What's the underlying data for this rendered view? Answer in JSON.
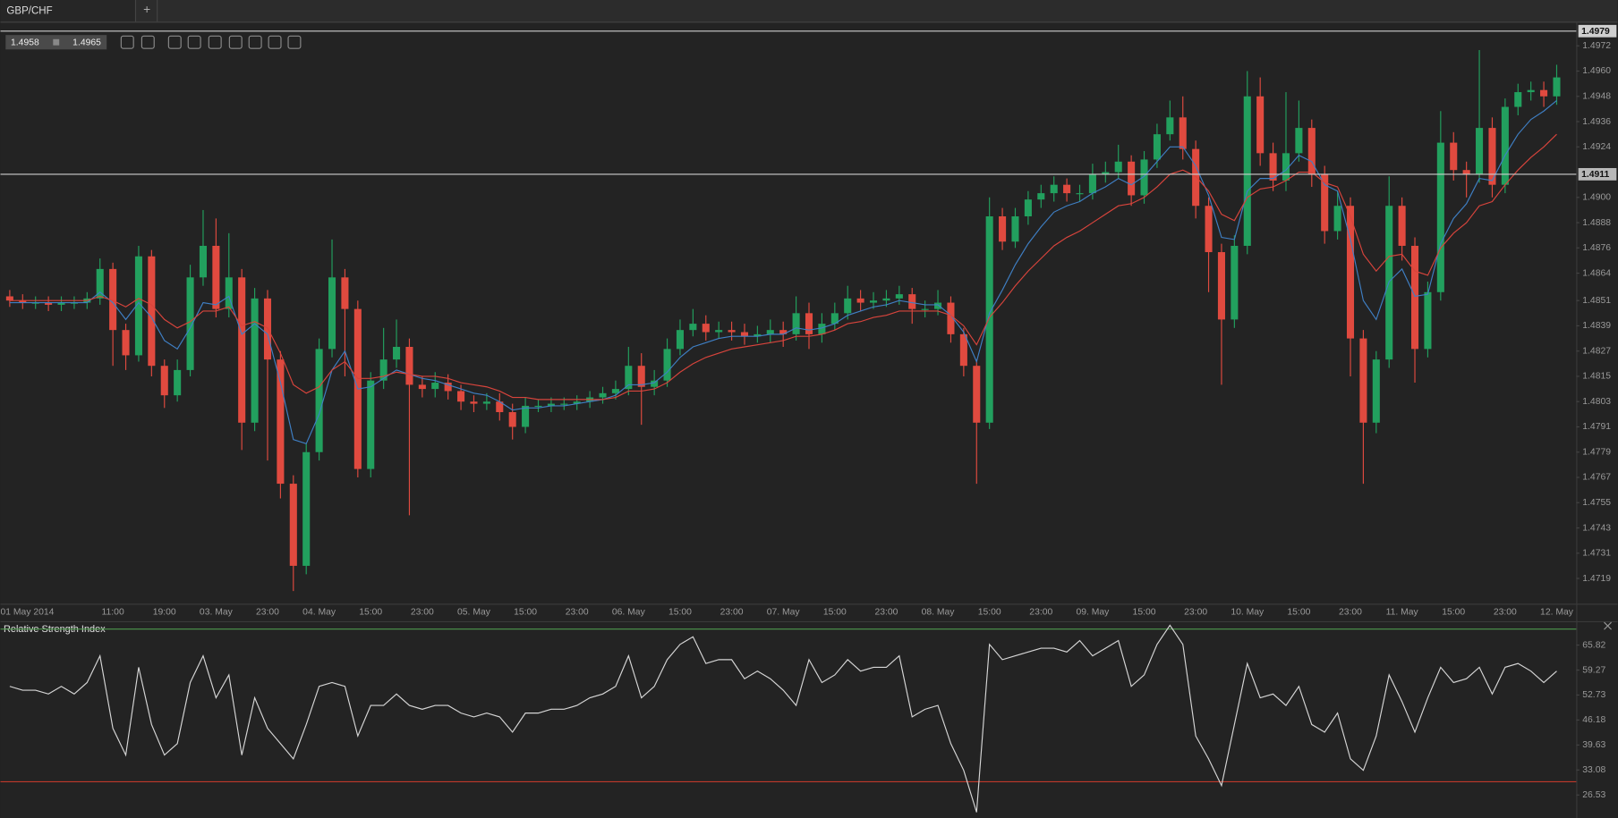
{
  "tab": {
    "title": "GBP/CHF",
    "add": "+"
  },
  "quote": {
    "bid": "1.4958",
    "ask": "1.4965"
  },
  "chart_data": [
    {
      "type": "candlestick",
      "up_color": "#22a05e",
      "down_color": "#e04a3f",
      "categories": [
        "01 May 2014",
        null,
        null,
        null,
        null,
        null,
        null,
        null,
        "11:00",
        null,
        null,
        null,
        "19:00",
        null,
        null,
        null,
        "03. May",
        null,
        null,
        null,
        "23:00",
        null,
        null,
        null,
        "04. May",
        null,
        null,
        null,
        "15:00",
        null,
        null,
        null,
        "23:00",
        null,
        null,
        null,
        "05. May",
        null,
        null,
        null,
        "15:00",
        null,
        null,
        null,
        "23:00",
        null,
        null,
        null,
        "06. May",
        null,
        null,
        null,
        "15:00",
        null,
        null,
        null,
        "23:00",
        null,
        null,
        null,
        "07. May",
        null,
        null,
        null,
        "15:00",
        null,
        null,
        null,
        "23:00",
        null,
        null,
        null,
        "08. May",
        null,
        null,
        null,
        "15:00",
        null,
        null,
        null,
        "23:00",
        null,
        null,
        null,
        "09. May",
        null,
        null,
        null,
        "15:00",
        null,
        null,
        null,
        "23:00",
        null,
        null,
        null,
        "10. May",
        null,
        null,
        null,
        "15:00",
        null,
        null,
        null,
        "23:00",
        null,
        null,
        null,
        "11. May",
        null,
        null,
        null,
        "15:00",
        null,
        null,
        null,
        "23:00",
        null,
        null,
        null,
        "12. May"
      ],
      "open": [
        1.4853,
        1.4851,
        1.485,
        1.485,
        1.4849,
        1.485,
        1.485,
        1.4852,
        1.4866,
        1.4837,
        1.4825,
        1.4872,
        1.482,
        1.4806,
        1.4818,
        1.4862,
        1.4877,
        1.4847,
        1.4862,
        1.4793,
        1.4852,
        1.4823,
        1.4764,
        1.4725,
        1.4779,
        1.4828,
        1.4862,
        1.4847,
        1.4771,
        1.4813,
        1.4823,
        1.4829,
        1.4811,
        1.4809,
        1.4812,
        1.4808,
        1.4803,
        1.4802,
        1.4803,
        1.4798,
        1.4791,
        1.4801,
        1.4801,
        1.4802,
        1.4802,
        1.4803,
        1.4805,
        1.4807,
        1.4809,
        1.482,
        1.481,
        1.4813,
        1.4828,
        1.4837,
        1.484,
        1.4836,
        1.4837,
        1.4836,
        1.4834,
        1.4835,
        1.4837,
        1.4835,
        1.4845,
        1.4835,
        1.484,
        1.4845,
        1.4852,
        1.485,
        1.4851,
        1.4852,
        1.4854,
        1.4847,
        1.4847,
        1.485,
        1.4835,
        1.482,
        1.4793,
        1.4891,
        1.4879,
        1.4891,
        1.4899,
        1.4902,
        1.4906,
        1.4902,
        1.4902,
        1.4911,
        1.4912,
        1.4917,
        1.4901,
        1.4918,
        1.493,
        1.4938,
        1.4923,
        1.4896,
        1.4874,
        1.4842,
        1.4877,
        1.4948,
        1.4921,
        1.4908,
        1.4921,
        1.4933,
        1.4911,
        1.4884,
        1.4896,
        1.4833,
        1.4793,
        1.4823,
        1.4896,
        1.4877,
        1.4828,
        1.4855,
        1.4926,
        1.4913,
        1.4911,
        1.4933,
        1.4906,
        1.4943,
        1.495,
        1.4951,
        1.4948
      ],
      "high": [
        1.4856,
        1.4854,
        1.4853,
        1.4853,
        1.4853,
        1.4853,
        1.4855,
        1.4871,
        1.4869,
        1.484,
        1.4877,
        1.4875,
        1.4823,
        1.4823,
        1.4868,
        1.4894,
        1.489,
        1.4883,
        1.4866,
        1.4857,
        1.4856,
        1.4827,
        1.4768,
        1.4783,
        1.4833,
        1.488,
        1.4866,
        1.4851,
        1.4817,
        1.4838,
        1.4842,
        1.4833,
        1.4815,
        1.4817,
        1.4816,
        1.4811,
        1.4806,
        1.4807,
        1.4807,
        1.4802,
        1.4805,
        1.4804,
        1.4805,
        1.4805,
        1.4806,
        1.4808,
        1.481,
        1.4813,
        1.4829,
        1.4826,
        1.4818,
        1.4833,
        1.4842,
        1.4847,
        1.4844,
        1.4841,
        1.4841,
        1.484,
        1.4839,
        1.4842,
        1.4841,
        1.4853,
        1.485,
        1.4845,
        1.485,
        1.4858,
        1.4856,
        1.4855,
        1.4856,
        1.4858,
        1.4857,
        1.4851,
        1.4856,
        1.4853,
        1.4838,
        1.4823,
        1.49,
        1.4895,
        1.4895,
        1.4903,
        1.4906,
        1.491,
        1.4909,
        1.4906,
        1.4916,
        1.4917,
        1.4925,
        1.492,
        1.4922,
        1.4935,
        1.4946,
        1.4948,
        1.4927,
        1.49,
        1.4878,
        1.4882,
        1.496,
        1.4957,
        1.4926,
        1.495,
        1.4946,
        1.4937,
        1.4915,
        1.4903,
        1.49,
        1.4837,
        1.4827,
        1.491,
        1.49,
        1.4881,
        1.486,
        1.4941,
        1.4931,
        1.4917,
        1.497,
        1.4938,
        1.4947,
        1.4954,
        1.4955,
        1.4955,
        1.4963
      ],
      "low": [
        1.4848,
        1.4847,
        1.4847,
        1.4846,
        1.4846,
        1.4847,
        1.4847,
        1.4849,
        1.482,
        1.4818,
        1.4822,
        1.4815,
        1.48,
        1.4803,
        1.4815,
        1.4858,
        1.4843,
        1.4843,
        1.478,
        1.4789,
        1.4775,
        1.4757,
        1.4713,
        1.4721,
        1.4775,
        1.4824,
        1.4815,
        1.4767,
        1.4767,
        1.4809,
        1.4819,
        1.4749,
        1.4805,
        1.4805,
        1.4804,
        1.4799,
        1.4798,
        1.4799,
        1.4794,
        1.4785,
        1.4788,
        1.4798,
        1.4798,
        1.4799,
        1.4799,
        1.48,
        1.4802,
        1.4804,
        1.4806,
        1.4792,
        1.4806,
        1.481,
        1.4825,
        1.4834,
        1.4832,
        1.4833,
        1.4832,
        1.483,
        1.4831,
        1.4831,
        1.4829,
        1.4832,
        1.4828,
        1.4831,
        1.4837,
        1.4842,
        1.4846,
        1.4847,
        1.4848,
        1.4849,
        1.484,
        1.4843,
        1.4844,
        1.4831,
        1.4815,
        1.4764,
        1.479,
        1.4875,
        1.4876,
        1.4887,
        1.4895,
        1.4898,
        1.4898,
        1.4898,
        1.4899,
        1.4907,
        1.4909,
        1.4896,
        1.4897,
        1.4914,
        1.4927,
        1.4918,
        1.489,
        1.4855,
        1.4811,
        1.4838,
        1.4873,
        1.4915,
        1.4903,
        1.4903,
        1.4917,
        1.4905,
        1.4878,
        1.488,
        1.4815,
        1.4764,
        1.4788,
        1.4819,
        1.487,
        1.4812,
        1.4824,
        1.4851,
        1.4908,
        1.49,
        1.4907,
        1.49,
        1.4902,
        1.4939,
        1.4946,
        1.4943,
        1.4944
      ],
      "close": [
        1.4851,
        1.485,
        1.485,
        1.4849,
        1.485,
        1.485,
        1.4852,
        1.4866,
        1.4837,
        1.4825,
        1.4872,
        1.482,
        1.4806,
        1.4818,
        1.4862,
        1.4877,
        1.4847,
        1.4862,
        1.4793,
        1.4852,
        1.4823,
        1.4764,
        1.4725,
        1.4779,
        1.4828,
        1.4862,
        1.4847,
        1.4771,
        1.4813,
        1.4823,
        1.4829,
        1.4811,
        1.4809,
        1.4812,
        1.4808,
        1.4803,
        1.4802,
        1.4803,
        1.4798,
        1.4791,
        1.4801,
        1.4801,
        1.4802,
        1.4802,
        1.4803,
        1.4805,
        1.4807,
        1.4809,
        1.482,
        1.481,
        1.4813,
        1.4828,
        1.4837,
        1.484,
        1.4836,
        1.4837,
        1.4836,
        1.4834,
        1.4835,
        1.4837,
        1.4835,
        1.4845,
        1.4835,
        1.484,
        1.4845,
        1.4852,
        1.485,
        1.4851,
        1.4852,
        1.4854,
        1.4847,
        1.4847,
        1.485,
        1.4835,
        1.482,
        1.4793,
        1.4891,
        1.4879,
        1.4891,
        1.4899,
        1.4902,
        1.4906,
        1.4902,
        1.4902,
        1.4911,
        1.4912,
        1.4917,
        1.4901,
        1.4918,
        1.493,
        1.4938,
        1.4923,
        1.4896,
        1.4874,
        1.4842,
        1.4877,
        1.4948,
        1.4921,
        1.4908,
        1.4921,
        1.4933,
        1.4911,
        1.4884,
        1.4896,
        1.4833,
        1.4793,
        1.4823,
        1.4896,
        1.4877,
        1.4828,
        1.4855,
        1.4926,
        1.4913,
        1.4911,
        1.4933,
        1.4906,
        1.4943,
        1.495,
        1.4951,
        1.4948,
        1.4957
      ],
      "lines": [
        {
          "color": "#3f7fc4",
          "values": [
            1.485,
            1.485,
            1.485,
            1.485,
            1.485,
            1.485,
            1.485,
            1.4855,
            1.485,
            1.4842,
            1.485,
            1.4843,
            1.4832,
            1.4828,
            1.4838,
            1.485,
            1.4849,
            1.4853,
            1.4835,
            1.484,
            1.4835,
            1.4812,
            1.4785,
            1.4783,
            1.4797,
            1.4818,
            1.4827,
            1.4809,
            1.481,
            1.4814,
            1.4818,
            1.4816,
            1.4814,
            1.4813,
            1.4811,
            1.4809,
            1.4807,
            1.4806,
            1.4803,
            1.4799,
            1.48,
            1.48,
            1.4801,
            1.4801,
            1.4802,
            1.4803,
            1.4804,
            1.4806,
            1.4811,
            1.4811,
            1.4812,
            1.4817,
            1.4824,
            1.4829,
            1.4831,
            1.4833,
            1.4834,
            1.4834,
            1.4834,
            1.4835,
            1.4835,
            1.4838,
            1.4837,
            1.4838,
            1.484,
            1.4844,
            1.4846,
            1.4848,
            1.4849,
            1.4851,
            1.485,
            1.4849,
            1.4849,
            1.4844,
            1.4836,
            1.4822,
            1.4845,
            1.4856,
            1.4868,
            1.4878,
            1.4886,
            1.4893,
            1.4896,
            1.4898,
            1.4902,
            1.4905,
            1.4909,
            1.4906,
            1.491,
            1.4917,
            1.4924,
            1.4924,
            1.4915,
            1.4901,
            1.4881,
            1.488,
            1.4903,
            1.4909,
            1.4909,
            1.4913,
            1.492,
            1.4917,
            1.4906,
            1.4903,
            1.488,
            1.4851,
            1.4842,
            1.486,
            1.4866,
            1.4853,
            1.4854,
            1.4878,
            1.489,
            1.4897,
            1.4909,
            1.4908,
            1.492,
            1.493,
            1.4937,
            1.4941,
            1.4946
          ]
        },
        {
          "color": "#d8443c",
          "values": [
            1.4851,
            1.4851,
            1.4851,
            1.4851,
            1.4851,
            1.4851,
            1.4851,
            1.4853,
            1.4851,
            1.4848,
            1.4852,
            1.4849,
            1.4842,
            1.4838,
            1.4841,
            1.4846,
            1.4846,
            1.4848,
            1.4839,
            1.4841,
            1.4838,
            1.4826,
            1.4811,
            1.4807,
            1.481,
            1.4818,
            1.4822,
            1.4814,
            1.4814,
            1.4815,
            1.4817,
            1.4816,
            1.4815,
            1.4815,
            1.4814,
            1.4812,
            1.4811,
            1.481,
            1.4808,
            1.4805,
            1.4805,
            1.4804,
            1.4804,
            1.4804,
            1.4804,
            1.4804,
            1.4804,
            1.4805,
            1.4808,
            1.4808,
            1.4809,
            1.4812,
            1.4817,
            1.4821,
            1.4824,
            1.4826,
            1.4828,
            1.4829,
            1.483,
            1.4831,
            1.4832,
            1.4834,
            1.4834,
            1.4835,
            1.4837,
            1.484,
            1.4841,
            1.4843,
            1.4844,
            1.4846,
            1.4846,
            1.4846,
            1.4846,
            1.4844,
            1.4839,
            1.483,
            1.4843,
            1.485,
            1.4858,
            1.4865,
            1.4871,
            1.4877,
            1.4881,
            1.4884,
            1.4888,
            1.4892,
            1.4896,
            1.4897,
            1.49,
            1.4905,
            1.4911,
            1.4913,
            1.491,
            1.4903,
            1.4892,
            1.4889,
            1.49,
            1.4904,
            1.4905,
            1.4908,
            1.4912,
            1.4912,
            1.4907,
            1.4905,
            1.4891,
            1.4873,
            1.4865,
            1.4872,
            1.4873,
            1.4865,
            1.4863,
            1.4876,
            1.4883,
            1.4888,
            1.4896,
            1.4898,
            1.4906,
            1.4913,
            1.4919,
            1.4924,
            1.493
          ]
        }
      ],
      "price_lines": [
        1.4979,
        1.4911
      ],
      "ylim": [
        1.4707,
        1.4983
      ],
      "yticks": [
        1.4972,
        {
          "value": 1.496,
          "label": "1.4960"
        },
        1.4948,
        1.4936,
        1.4924,
        {
          "value": 1.49,
          "label": "1.4900"
        },
        1.4888,
        1.4876,
        1.4864,
        1.4851,
        1.4839,
        1.4827,
        1.4815,
        1.4803,
        1.4791,
        1.4779,
        1.4767,
        1.4755,
        1.4743,
        1.4731,
        1.4719
      ]
    },
    {
      "type": "line",
      "title": "Relative Strength Index",
      "color": "#d6d6d6",
      "values": [
        55,
        54,
        54,
        53,
        55,
        53,
        56,
        63,
        44,
        37,
        60,
        45,
        37,
        40,
        56,
        63,
        52,
        58,
        37,
        52,
        44,
        40,
        36,
        45,
        55,
        56,
        55,
        42,
        50,
        50,
        53,
        50,
        49,
        50,
        50,
        48,
        47,
        48,
        47,
        43,
        48,
        48,
        49,
        49,
        50,
        52,
        53,
        55,
        63,
        52,
        55,
        62,
        66,
        68,
        61,
        62,
        62,
        57,
        59,
        57,
        54,
        50,
        62,
        56,
        58,
        62,
        59,
        60,
        60,
        63,
        47,
        49,
        50,
        40,
        33,
        22,
        66,
        62,
        63,
        64,
        65,
        65,
        64,
        67,
        63,
        65,
        67,
        55,
        58,
        66,
        71,
        66,
        42,
        36,
        29,
        45,
        61,
        52,
        53,
        50,
        55,
        45,
        43,
        48,
        36,
        33,
        42,
        58,
        51,
        43,
        52,
        60,
        56,
        57,
        60,
        53,
        60,
        61,
        59,
        56,
        59
      ],
      "levels": [
        {
          "value": 70,
          "color": "#4e9a4e"
        },
        {
          "value": 30,
          "color": "#c0392b"
        }
      ],
      "ylim": [
        20.5,
        71.8
      ],
      "yticks": [
        65.82,
        59.27,
        52.73,
        46.18,
        39.63,
        33.08,
        26.53
      ]
    }
  ]
}
